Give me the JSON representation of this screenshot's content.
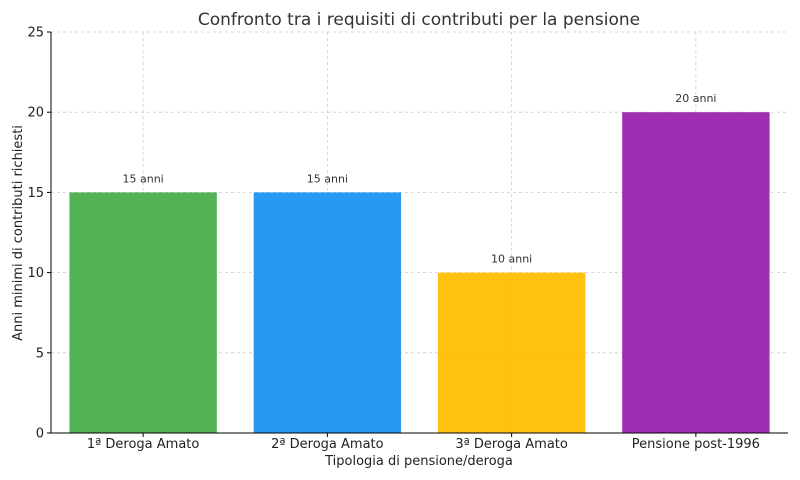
{
  "chart_data": {
    "type": "bar",
    "title": "Confronto tra i requisiti di contributi per la pensione",
    "xlabel": "Tipologia di pensione/deroga",
    "ylabel": "Anni minimi di contributi richiesti",
    "categories": [
      "1ª Deroga Amato",
      "2ª Deroga Amato",
      "3ª Deroga Amato",
      "Pensione post-1996"
    ],
    "values": [
      15,
      15,
      10,
      20
    ],
    "data_labels": [
      "15 anni",
      "15 anni",
      "10 anni",
      "20 anni"
    ],
    "colors": [
      "#4caf50",
      "#2196f3",
      "#ffc107",
      "#9c27b0"
    ],
    "ylim": [
      0,
      25
    ],
    "yticks": [
      0,
      5,
      10,
      15,
      20,
      25
    ],
    "grid": true,
    "legend": "none"
  }
}
